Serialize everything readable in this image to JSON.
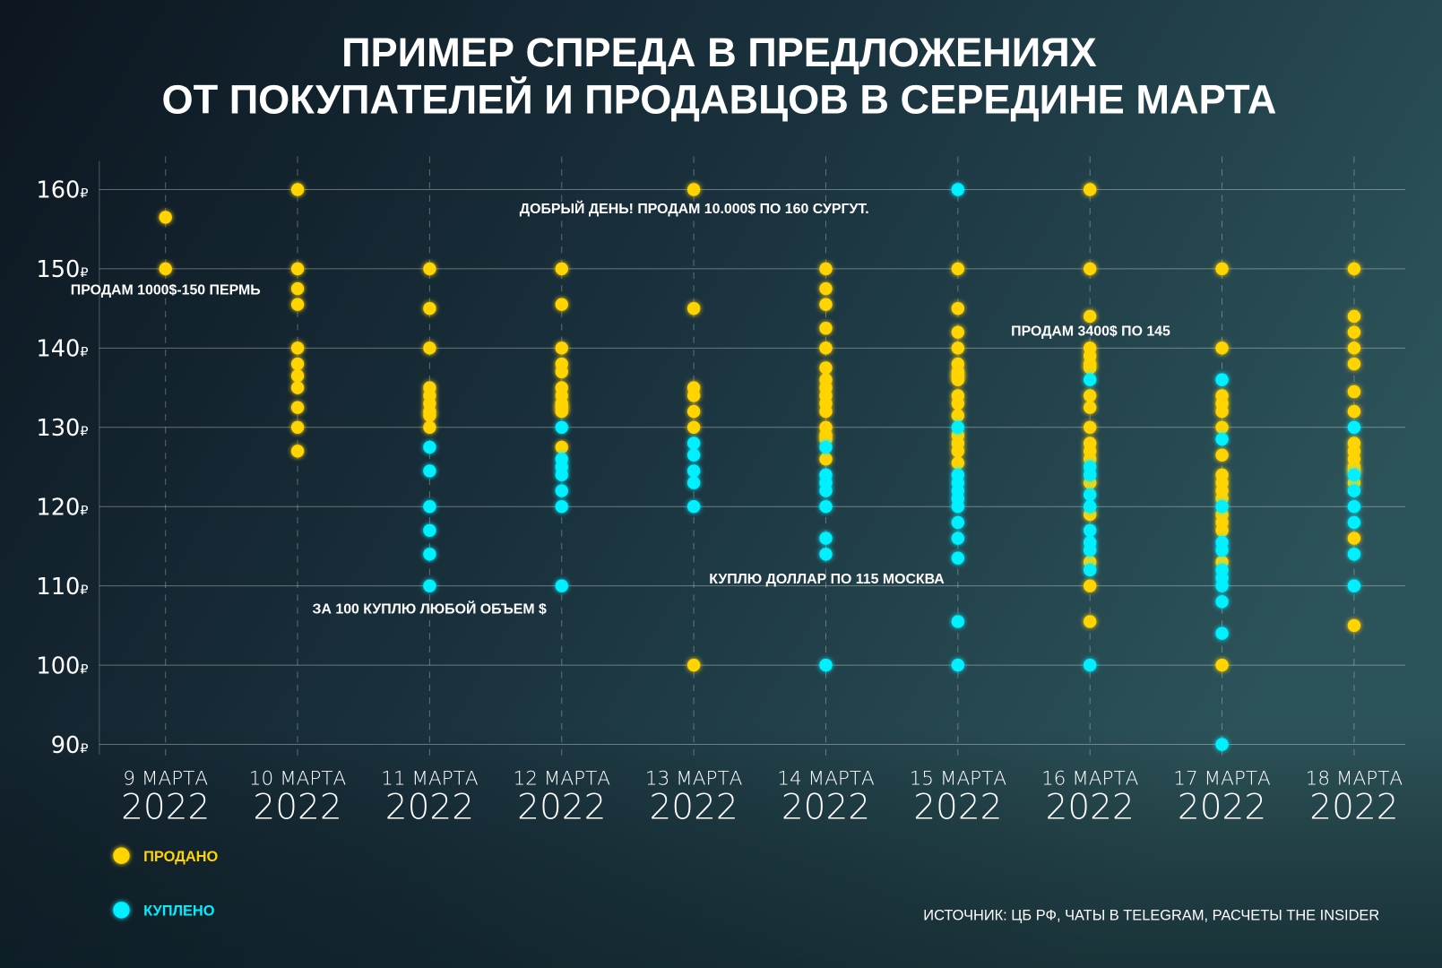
{
  "chart_data": {
    "type": "scatter",
    "title": "ПРИМЕР СПРЕДА В ПРЕДЛОЖЕНИЯХ",
    "title_line2": "ОТ ПОКУПАТЕЛЕЙ И ПРОДАВЦОВ В СЕРЕДИНЕ МАРТА",
    "ylim": [
      90,
      160
    ],
    "yticks": [
      160,
      150,
      140,
      130,
      120,
      110,
      100,
      90
    ],
    "y_unit": "₽",
    "grid": true,
    "legend_placement": "bottom-left",
    "categories": [
      {
        "day": "9 МАРТА",
        "year": "2022"
      },
      {
        "day": "10 МАРТА",
        "year": "2022"
      },
      {
        "day": "11 МАРТА",
        "year": "2022"
      },
      {
        "day": "12 МАРТА",
        "year": "2022"
      },
      {
        "day": "13 МАРТА",
        "year": "2022"
      },
      {
        "day": "14 МАРТА",
        "year": "2022"
      },
      {
        "day": "15 МАРТА",
        "year": "2022"
      },
      {
        "day": "16 МАРТА",
        "year": "2022"
      },
      {
        "day": "17 МАРТА",
        "year": "2022"
      },
      {
        "day": "18 МАРТА",
        "year": "2022"
      }
    ],
    "series": [
      {
        "name": "ПРОДАНО",
        "color": "#ffd400",
        "values": [
          [
            156.5,
            150
          ],
          [
            160,
            150,
            147.5,
            145.5,
            140,
            138,
            136.5,
            135,
            132.5,
            130,
            127
          ],
          [
            150,
            145,
            140,
            135,
            134,
            133,
            132,
            131.5,
            130
          ],
          [
            150,
            145.5,
            140,
            138,
            137,
            135,
            134,
            133,
            132.5,
            132,
            127.5
          ],
          [
            160,
            145,
            135,
            134,
            132,
            130,
            100
          ],
          [
            150,
            147.5,
            145.5,
            142.5,
            140,
            137.5,
            136,
            135,
            134,
            133,
            132,
            130,
            129,
            128.5,
            126
          ],
          [
            150,
            145,
            142,
            140,
            138,
            137,
            136.5,
            136,
            134,
            133,
            131.5,
            129,
            128,
            127,
            125.5
          ],
          [
            160,
            150,
            144,
            140,
            139,
            138,
            137.5,
            134,
            132.5,
            130,
            128,
            127,
            126,
            123,
            119,
            113,
            110,
            105.5
          ],
          [
            150,
            140,
            134,
            133,
            132,
            130,
            126.5,
            124,
            123,
            122,
            121,
            119,
            118,
            117,
            113,
            100
          ],
          [
            150,
            144,
            142,
            140,
            138,
            134.5,
            132,
            128,
            127,
            126,
            125,
            124.5,
            123,
            116,
            105
          ]
        ]
      },
      {
        "name": "КУПЛЕНО",
        "color": "#00f0ff",
        "values": [
          [],
          [],
          [
            127.5,
            124.5,
            120,
            117,
            114,
            110
          ],
          [
            130,
            126,
            125,
            124,
            122,
            120,
            110
          ],
          [
            128,
            126.5,
            124.5,
            123,
            120
          ],
          [
            127.5,
            124,
            123,
            122,
            120,
            116,
            114,
            100
          ],
          [
            160,
            130,
            124,
            123,
            122,
            121,
            120,
            118,
            116,
            113.5,
            105.5,
            100
          ],
          [
            136,
            125,
            124,
            121.5,
            120,
            117,
            115.5,
            114.5,
            112,
            100
          ],
          [
            136,
            128.5,
            120,
            115.5,
            114.5,
            112,
            111,
            110,
            108,
            104,
            90
          ],
          [
            130,
            124,
            122,
            120,
            118,
            114,
            110
          ]
        ]
      }
    ],
    "annotations": [
      {
        "text": "ПРОДАМ 1000$-150 ПЕРМЬ",
        "category": "9 МАРТА",
        "value": 150
      },
      {
        "text": "ДОБРЫЙ ДЕНЬ! ПРОДАМ 10.000$ ПО 160 СУРГУТ.",
        "category": "13 МАРТА",
        "value": 160
      },
      {
        "text": "ПРОДАМ 3400$ ПО 145",
        "category": "16 МАРТА",
        "value": 145
      },
      {
        "text": "КУПЛЮ ДОЛЛАР ПО 115 МОСКВА",
        "category": "14 МАРТА",
        "value": 115
      },
      {
        "text": "ЗА 100 КУПЛЮ ЛЮБОЙ ОБЪЕМ $",
        "category": "11 МАРТА",
        "value": 110
      }
    ],
    "source": "ИСТОЧНИК: ЦБ РФ, ЧАТЫ В TELEGRAM, РАСЧЕТЫ THE INSIDER"
  }
}
